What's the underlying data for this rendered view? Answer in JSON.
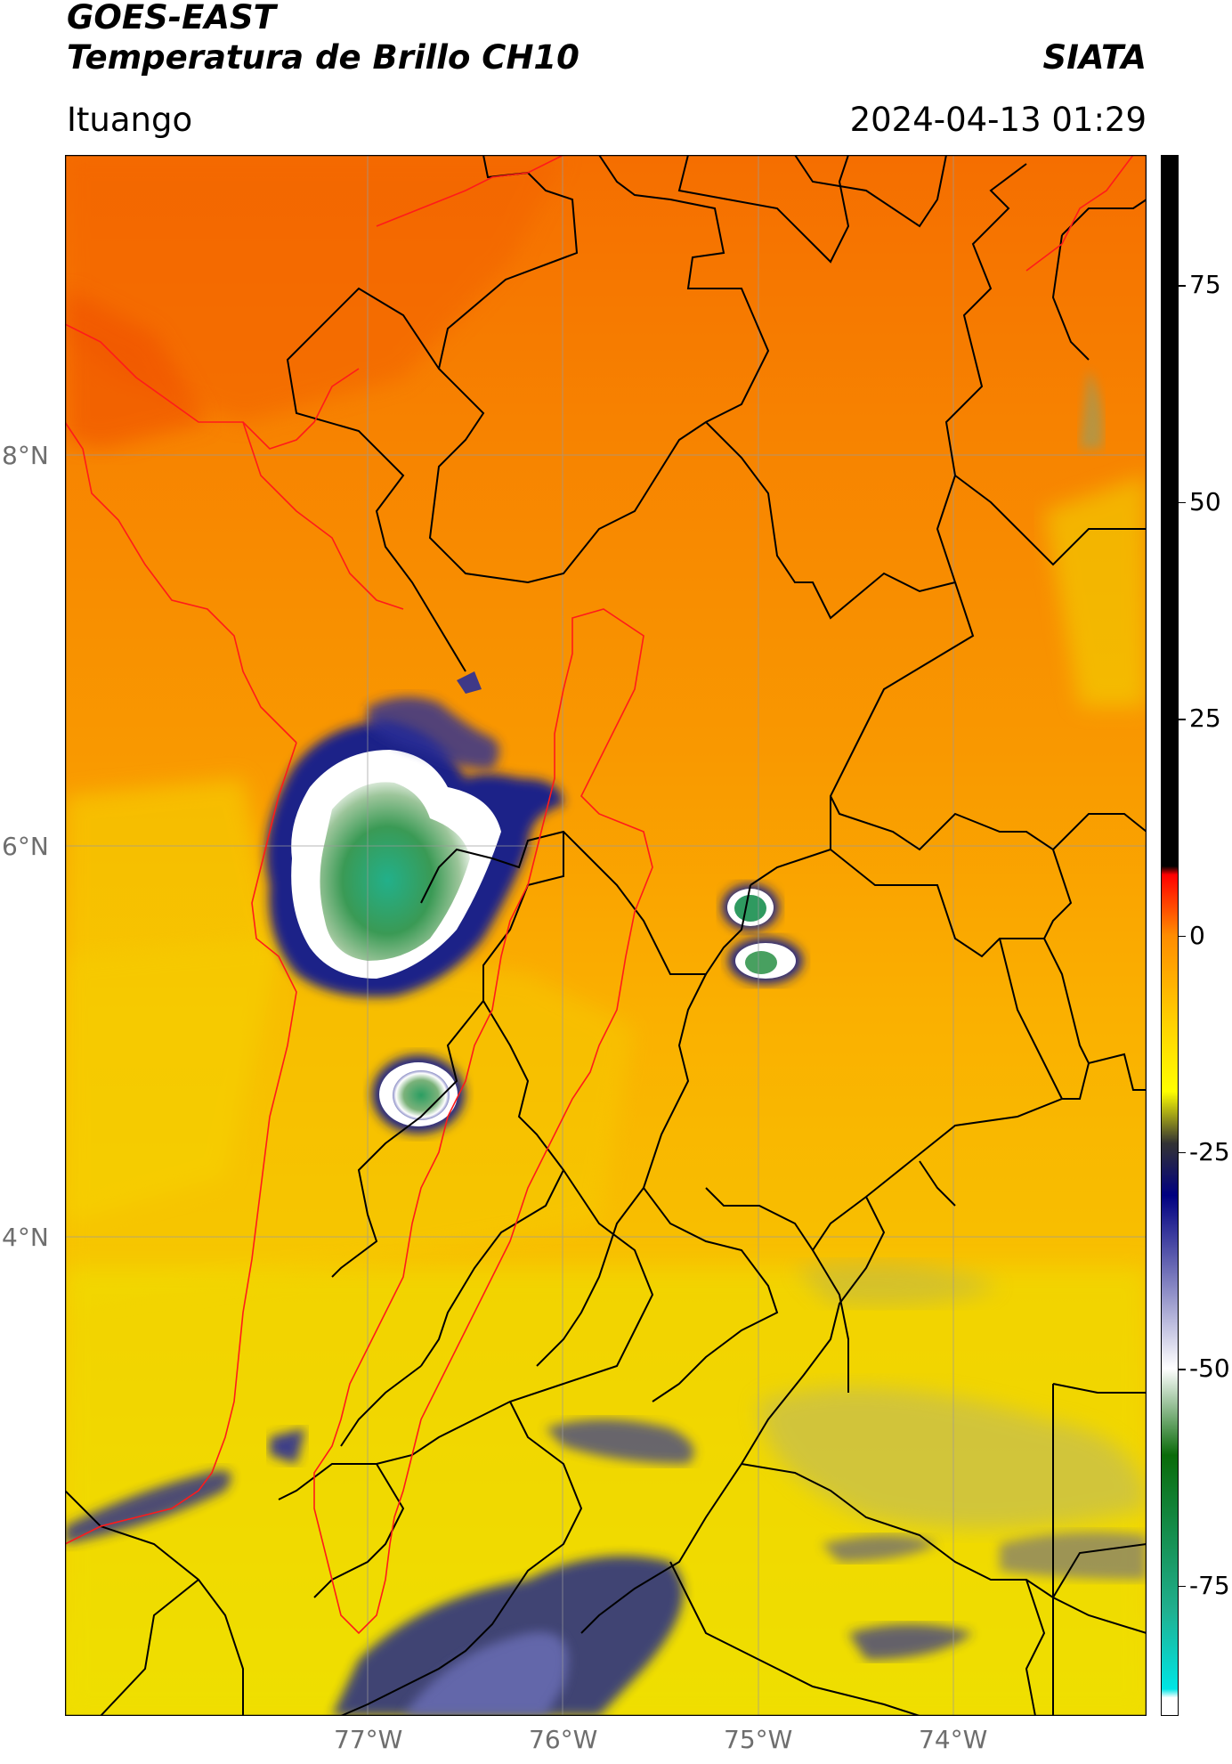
{
  "header": {
    "satellite": "GOES-EAST",
    "product": "Temperatura de Brillo CH10",
    "agency": "SIATA",
    "location": "Ituango",
    "datetime": "2024-04-13 01:29"
  },
  "map": {
    "lat_ticks": [
      "8°N",
      "6°N",
      "4°N"
    ],
    "lon_ticks": [
      "77°W",
      "76°W",
      "75°W",
      "74°W"
    ],
    "colors": {
      "warm_background": "#f7a000",
      "north_region": "#f57a00",
      "lowland": "#f2e100",
      "cold_cloud_edge": "#1a1f8c",
      "cold_cloud_core": "#2f8f5a",
      "border_national": "#000000",
      "border_basin": "#ff0000"
    }
  },
  "colorbar": {
    "ticks": [
      "75",
      "50",
      "25",
      "0",
      "-25",
      "-50",
      "-75"
    ],
    "range": [
      -90,
      90
    ],
    "stops": [
      {
        "value": 90,
        "color": "#000000"
      },
      {
        "value": 8,
        "color": "#000000"
      },
      {
        "value": 7,
        "color": "#ff0000"
      },
      {
        "value": 0,
        "color": "#ff8c00"
      },
      {
        "value": -10,
        "color": "#ffd000"
      },
      {
        "value": -18,
        "color": "#ffff00"
      },
      {
        "value": -24,
        "color": "#333333"
      },
      {
        "value": -30,
        "color": "#000080"
      },
      {
        "value": -50,
        "color": "#ffffff"
      },
      {
        "value": -60,
        "color": "#0a6b0a"
      },
      {
        "value": -78,
        "color": "#20b090"
      },
      {
        "value": -87,
        "color": "#00e5e5"
      },
      {
        "value": -88,
        "color": "#ffffff"
      },
      {
        "value": -90,
        "color": "#ffffff"
      }
    ]
  }
}
